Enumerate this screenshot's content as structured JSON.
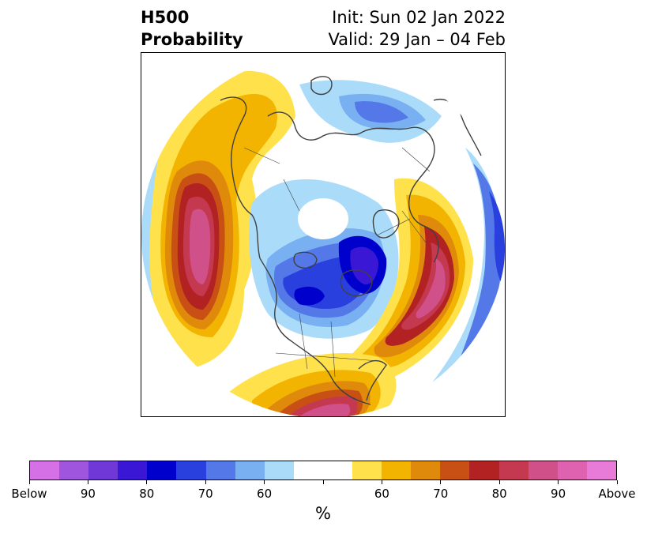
{
  "figure": {
    "title_left": [
      "H500",
      "Probability"
    ],
    "title_right": [
      "Init: Sun 02 Jan 2022",
      "Valid: 29 Jan – 04 Feb"
    ]
  },
  "colorbar": {
    "unit": "%",
    "colors": [
      "#d670e6",
      "#a055de",
      "#7038d6",
      "#3a17d4",
      "#0000cc",
      "#2a40de",
      "#5478e8",
      "#78b0f2",
      "#aadcfa",
      "#ffffff",
      "#ffffff",
      "#ffe14b",
      "#f2b400",
      "#e08a0c",
      "#c85014",
      "#b22222",
      "#c43850",
      "#d0508a",
      "#de62b0",
      "#e87ad8"
    ],
    "ticks": [
      {
        "label": "Below",
        "index": 0
      },
      {
        "label": "90",
        "index": 2
      },
      {
        "label": "80",
        "index": 4
      },
      {
        "label": "70",
        "index": 6
      },
      {
        "label": "60",
        "index": 8
      },
      {
        "label": "",
        "index": 10
      },
      {
        "label": "60",
        "index": 12
      },
      {
        "label": "70",
        "index": 14
      },
      {
        "label": "80",
        "index": 16
      },
      {
        "label": "90",
        "index": 18
      },
      {
        "label": "Above",
        "index": 20
      }
    ]
  },
  "map": {
    "projection": "north polar stereographic",
    "coastline_color": "#404040"
  }
}
